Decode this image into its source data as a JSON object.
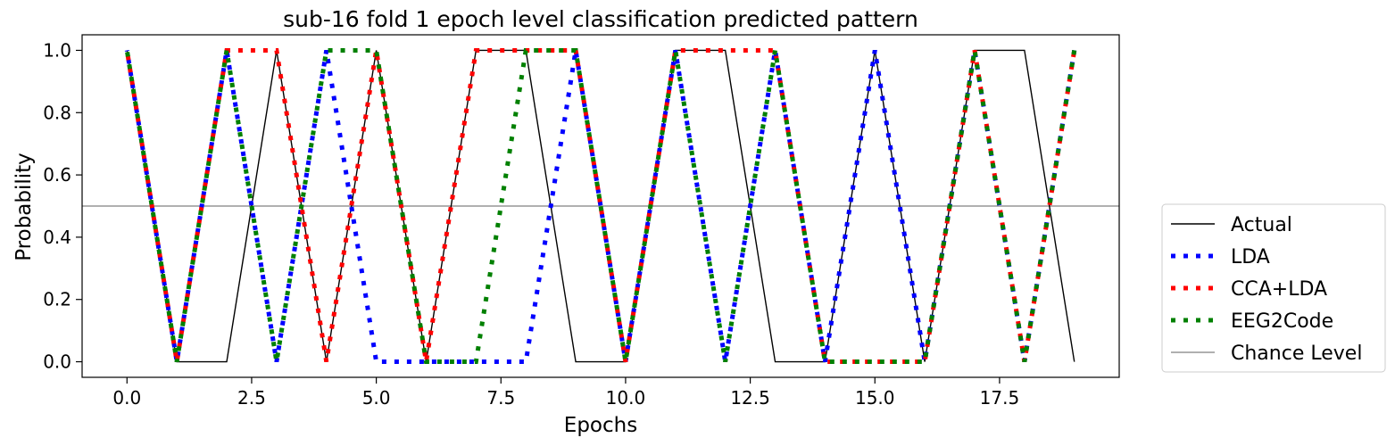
{
  "chart_data": {
    "type": "line",
    "title": "sub-16 fold 1 epoch level classification predicted pattern",
    "xlabel": "Epochs",
    "ylabel": "Probability",
    "xlim": [
      -0.9,
      19.9
    ],
    "ylim": [
      -0.05,
      1.05
    ],
    "xticks": [
      0,
      2.5,
      5,
      7.5,
      10,
      12.5,
      15,
      17.5
    ],
    "xtick_labels": [
      "0.0",
      "2.5",
      "5.0",
      "7.5",
      "10.0",
      "12.5",
      "15.0",
      "17.5"
    ],
    "yticks": [
      0,
      0.2,
      0.4,
      0.6,
      0.8,
      1.0
    ],
    "ytick_labels": [
      "0.0",
      "0.2",
      "0.4",
      "0.6",
      "0.8",
      "1.0"
    ],
    "x": [
      0,
      1,
      2,
      3,
      4,
      5,
      6,
      7,
      8,
      9,
      10,
      11,
      12,
      13,
      14,
      15,
      16,
      17,
      18,
      19
    ],
    "series": [
      {
        "name": "Actual",
        "color": "#000000",
        "style": "solid",
        "values": [
          1,
          0,
          0,
          1,
          0,
          1,
          0,
          1,
          1,
          0,
          0,
          1,
          1,
          0,
          0,
          1,
          0,
          1,
          1,
          0
        ]
      },
      {
        "name": "LDA",
        "color": "#0000ff",
        "style": "dotted",
        "values": [
          1,
          0,
          1,
          0,
          1,
          0,
          0,
          0,
          0,
          1,
          0,
          1,
          0,
          1,
          0,
          1,
          0,
          1,
          0,
          1
        ]
      },
      {
        "name": "CCA+LDA",
        "color": "#ff0000",
        "style": "dotted",
        "values": [
          1,
          0,
          1,
          1,
          0,
          1,
          0,
          1,
          1,
          1,
          0,
          1,
          1,
          1,
          0,
          0,
          0,
          1,
          0,
          1
        ]
      },
      {
        "name": "EEG2Code",
        "color": "#008000",
        "style": "dotted",
        "values": [
          1,
          0,
          1,
          0,
          1,
          1,
          0,
          0,
          1,
          1,
          0,
          1,
          0,
          1,
          0,
          0,
          0,
          1,
          0,
          1
        ]
      }
    ],
    "hlines": [
      {
        "name": "Chance Level",
        "y": 0.5,
        "color": "#808080"
      }
    ],
    "legend_placement": "right"
  }
}
